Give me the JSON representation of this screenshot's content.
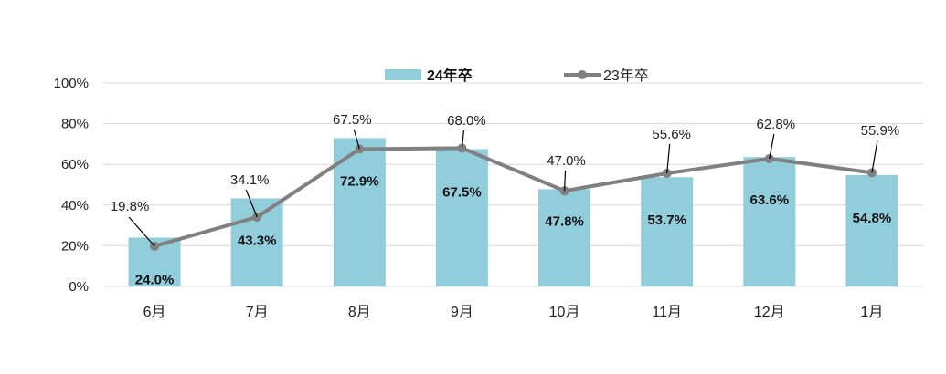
{
  "chart_data": {
    "type": "bar",
    "categories": [
      "6月",
      "7月",
      "8月",
      "9月",
      "10月",
      "11月",
      "12月",
      "1月"
    ],
    "series": [
      {
        "name": "24年卒",
        "type": "bar",
        "values": [
          24.0,
          43.3,
          72.9,
          67.5,
          47.8,
          53.7,
          63.6,
          54.8
        ],
        "labels": [
          "24.0%",
          "43.3%",
          "72.9%",
          "67.5%",
          "47.8%",
          "53.7%",
          "63.6%",
          "54.8%"
        ],
        "color": "#92CDDC"
      },
      {
        "name": "23年卒",
        "type": "line",
        "values": [
          19.8,
          34.1,
          67.5,
          68.0,
          47.0,
          55.6,
          62.8,
          55.9
        ],
        "labels": [
          "19.8%",
          "34.1%",
          "67.5%",
          "68.0%",
          "47.0%",
          "55.6%",
          "62.8%",
          "55.9%"
        ],
        "color": "#808080"
      }
    ],
    "yticks": [
      "0%",
      "20%",
      "40%",
      "60%",
      "80%",
      "100%"
    ],
    "ylim": [
      0,
      100
    ],
    "grid": true,
    "legend": "top-center"
  }
}
